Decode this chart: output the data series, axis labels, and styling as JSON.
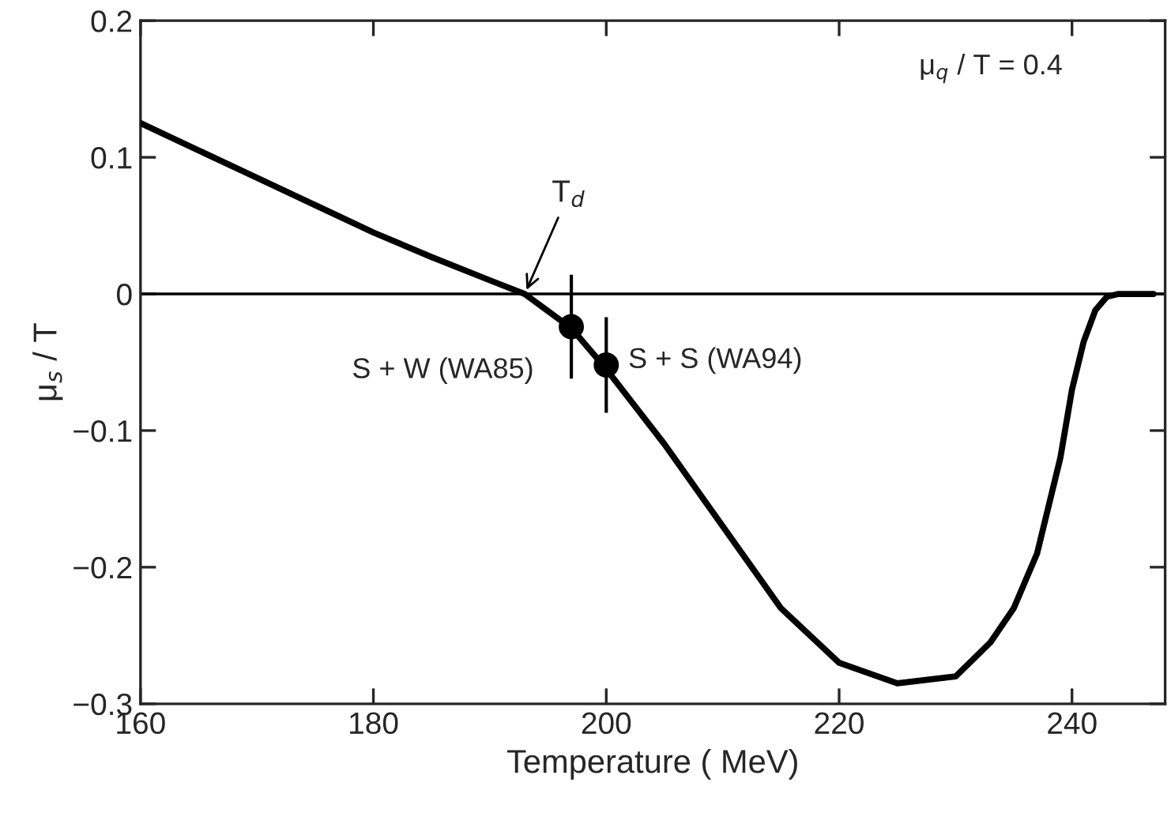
{
  "chart_data": {
    "type": "line",
    "xlabel": "Temperature ( MeV)",
    "ylabel": "μ$_{s}$ / T",
    "xlim": [
      160,
      248
    ],
    "ylim": [
      -0.3,
      0.2
    ],
    "xticks": [
      160,
      180,
      200,
      220,
      240
    ],
    "yticks": [
      {
        "value": -0.3,
        "label": "−0.3"
      },
      {
        "value": -0.2,
        "label": "−0.2"
      },
      {
        "value": -0.1,
        "label": "−0.1"
      },
      0,
      0.1,
      0.2
    ],
    "grid": false,
    "series": [
      {
        "color": "#000000",
        "marker": "none",
        "line_style": "solid",
        "x": [
          160,
          165,
          170,
          175,
          180,
          185,
          190,
          193,
          197,
          200,
          205,
          210,
          215,
          220,
          225,
          230,
          233,
          235,
          237,
          239,
          240,
          241,
          242,
          243,
          244,
          247
        ],
        "values": [
          0.125,
          0.105,
          0.085,
          0.065,
          0.045,
          0.027,
          0.01,
          0,
          -0.025,
          -0.055,
          -0.11,
          -0.17,
          -0.23,
          -0.27,
          -0.285,
          -0.28,
          -0.255,
          -0.23,
          -0.19,
          -0.12,
          -0.07,
          -0.035,
          -0.012,
          -0.002,
          0,
          0
        ]
      },
      {
        "type": "scatter",
        "color": "#000000",
        "marker": "circle",
        "x": [
          197,
          200
        ],
        "values": [
          -0.024,
          -0.052
        ],
        "errors": [
          0.038,
          0.035
        ]
      }
    ],
    "ref_lines": [
      {
        "axis": "y",
        "value": 0
      }
    ],
    "annotations": [
      "μ$_{q}$ / T = 0.4",
      {
        "text": "T$_{d}$",
        "x": 193,
        "y": 0
      },
      {
        "text": "S + W (WA85)",
        "x": 197,
        "y": -0.024
      },
      {
        "text": "S + S (WA94)",
        "x": 200,
        "y": -0.052
      }
    ]
  }
}
